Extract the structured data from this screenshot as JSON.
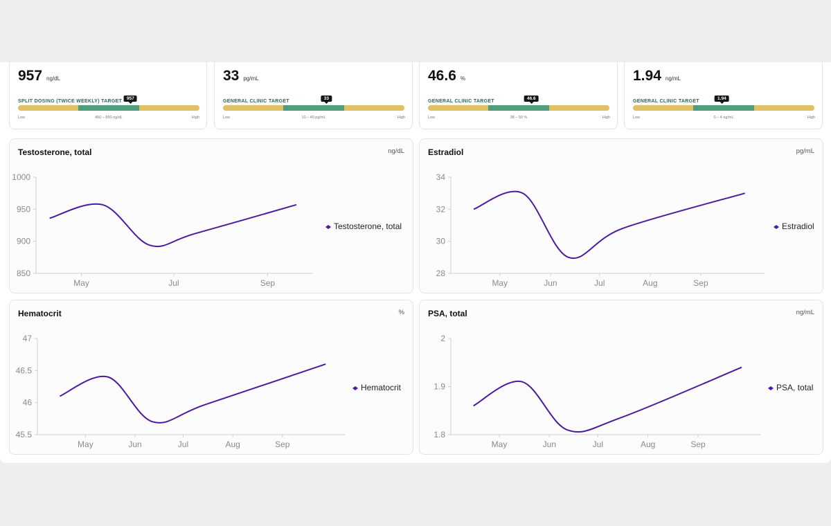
{
  "metrics": [
    {
      "value": "957",
      "unit": "ng/dL",
      "target_label": "SPLIT DOSING (TWICE WEEKLY) TARGET",
      "marker": "957",
      "marker_fraction": 0.62,
      "scale_low": "Low",
      "scale_mid": "450 – 850 ng/dL",
      "scale_high": "High"
    },
    {
      "value": "33",
      "unit": "pg/mL",
      "target_label": "GENERAL CLINIC TARGET",
      "marker": "33",
      "marker_fraction": 0.57,
      "scale_low": "Low",
      "scale_mid": "10 – 40 pg/mL",
      "scale_high": "High"
    },
    {
      "value": "46.6",
      "unit": "%",
      "target_label": "GENERAL CLINIC TARGET",
      "marker": "46.6",
      "marker_fraction": 0.57,
      "scale_low": "Low",
      "scale_mid": "38 – 50 %",
      "scale_high": "High"
    },
    {
      "value": "1.94",
      "unit": "ng/mL",
      "target_label": "GENERAL CLINIC TARGET",
      "marker": "1.94",
      "marker_fraction": 0.49,
      "scale_low": "Low",
      "scale_mid": "0 – 4 ng/mL",
      "scale_high": "High"
    }
  ],
  "colors": {
    "line": "#4b1a9e",
    "in_range": "#4f9e7e",
    "out_of_range": "#dfc064",
    "marker": "#151515"
  },
  "chart_data": [
    {
      "type": "line",
      "title": "Testosterone, total",
      "unit": "ng/dL",
      "ylim": [
        850,
        1000
      ],
      "yticks": [
        850,
        900,
        950,
        1000
      ],
      "x": [
        "Apr 10",
        "May 15",
        "Jun 15",
        "Jul 15",
        "Sep 20"
      ],
      "values": [
        936,
        957,
        894,
        912,
        957
      ],
      "xtick_labels": [
        "May",
        "Jul",
        "Sep"
      ],
      "xtick_dates": [
        "May 1",
        "Jul 1",
        "Sep 1"
      ],
      "series": [
        {
          "name": "Testosterone, total"
        }
      ],
      "legend": "right",
      "grid": false
    },
    {
      "type": "line",
      "title": "Estradiol",
      "unit": "pg/mL",
      "ylim": [
        28,
        34
      ],
      "yticks": [
        28,
        30,
        32,
        34
      ],
      "x": [
        "Apr 15",
        "May 15",
        "Jun 12",
        "Jul 15",
        "Sep 28"
      ],
      "values": [
        32,
        33,
        29,
        30.8,
        33
      ],
      "xtick_labels": [
        "May",
        "Jun",
        "Jul",
        "Aug",
        "Sep"
      ],
      "xtick_dates": [
        "May 1",
        "Jun 1",
        "Jul 1",
        "Aug 1",
        "Sep 1"
      ],
      "series": [
        {
          "name": "Estradiol"
        }
      ],
      "legend": "right",
      "grid": false
    },
    {
      "type": "line",
      "title": "Hematocrit",
      "unit": "%",
      "ylim": [
        45.5,
        47
      ],
      "yticks": [
        45.5,
        46,
        46.5,
        47
      ],
      "x": [
        "Apr 15",
        "May 15",
        "Jun 12",
        "Jul 15",
        "Sep 28"
      ],
      "values": [
        46.1,
        46.4,
        45.7,
        45.97,
        46.6
      ],
      "xtick_labels": [
        "May",
        "Jun",
        "Jul",
        "Aug",
        "Sep"
      ],
      "xtick_dates": [
        "May 1",
        "Jun 1",
        "Jul 1",
        "Aug 1",
        "Sep 1"
      ],
      "series": [
        {
          "name": "Hematocrit"
        }
      ],
      "legend": "right",
      "grid": false
    },
    {
      "type": "line",
      "title": "PSA, total",
      "unit": "ng/mL",
      "ylim": [
        1.8,
        2
      ],
      "yticks": [
        1.8,
        1.9,
        2
      ],
      "x": [
        "Apr 15",
        "May 15",
        "Jun 12",
        "Jul 15",
        "Sep 28"
      ],
      "values": [
        1.86,
        1.91,
        1.81,
        1.835,
        1.94
      ],
      "xtick_labels": [
        "May",
        "Jun",
        "Jul",
        "Aug",
        "Sep"
      ],
      "xtick_dates": [
        "May 1",
        "Jun 1",
        "Jul 1",
        "Aug 1",
        "Sep 1"
      ],
      "series": [
        {
          "name": "PSA, total"
        }
      ],
      "legend": "right",
      "grid": false
    }
  ]
}
